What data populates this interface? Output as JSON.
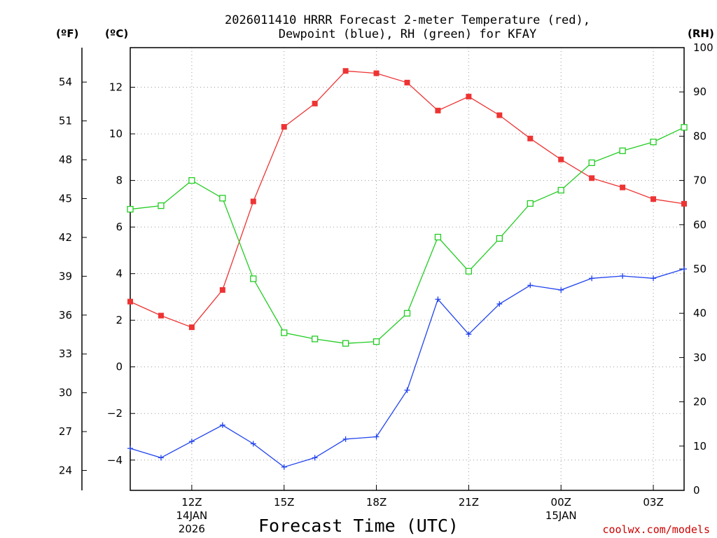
{
  "chart_data": {
    "type": "line",
    "title_line1": "2026011410 HRRR Forecast 2-meter Temperature (red),",
    "title_line2": "Dewpoint (blue), RH (green) for KFAY",
    "xlabel": "Forecast Time (UTC)",
    "credit": "coolwx.com/models",
    "left_unit_f": "(ºF)",
    "left_unit_c": "(ºC)",
    "right_unit": "(RH)",
    "x_hours": [
      10,
      11,
      12,
      13,
      14,
      15,
      16,
      17,
      18,
      19,
      20,
      21,
      22,
      23,
      24,
      25,
      26,
      27,
      28
    ],
    "x_range": [
      10,
      28
    ],
    "x_ticks": [
      {
        "hour": 12,
        "label": "12Z",
        "sub1": "14JAN",
        "sub2": "2026"
      },
      {
        "hour": 15,
        "label": "15Z"
      },
      {
        "hour": 18,
        "label": "18Z"
      },
      {
        "hour": 21,
        "label": "21Z"
      },
      {
        "hour": 24,
        "label": "00Z",
        "sub1": "15JAN"
      },
      {
        "hour": 27,
        "label": "03Z"
      }
    ],
    "c_range": [
      -5.3,
      13.7
    ],
    "c_ticks": [
      "-4",
      "-2",
      "0",
      "2",
      "4",
      "6",
      "8",
      "10",
      "12"
    ],
    "f_ticks": [
      "24",
      "27",
      "30",
      "33",
      "36",
      "39",
      "42",
      "45",
      "48",
      "51",
      "54"
    ],
    "rh_range": [
      0,
      100
    ],
    "rh_ticks": [
      "0",
      "10",
      "20",
      "30",
      "40",
      "50",
      "60",
      "70",
      "80",
      "90",
      "100"
    ],
    "series": [
      {
        "name": "Temperature",
        "unit": "C",
        "color": "#ee3333",
        "marker": "filled-square",
        "values": [
          2.8,
          2.2,
          1.7,
          3.3,
          7.1,
          10.3,
          11.3,
          12.7,
          12.6,
          12.2,
          11.0,
          11.6,
          10.8,
          9.8,
          8.9,
          8.1,
          7.7,
          7.2,
          7.0
        ]
      },
      {
        "name": "Dewpoint",
        "unit": "C",
        "color": "#2244ee",
        "marker": "plus",
        "values": [
          -3.5,
          -3.9,
          -3.2,
          -2.5,
          -3.3,
          -4.3,
          -3.9,
          -3.1,
          -3.0,
          -1.0,
          2.9,
          1.4,
          2.7,
          3.5,
          3.3,
          3.8,
          3.9,
          3.8,
          4.2
        ]
      },
      {
        "name": "RH",
        "unit": "%",
        "color": "#22cc22",
        "marker": "open-square",
        "values": [
          63.5,
          64.3,
          70.0,
          66.0,
          47.8,
          35.6,
          34.2,
          33.2,
          33.6,
          40.0,
          57.2,
          49.5,
          56.9,
          64.8,
          67.8,
          74.0,
          76.7,
          78.7,
          82.0
        ]
      }
    ]
  }
}
